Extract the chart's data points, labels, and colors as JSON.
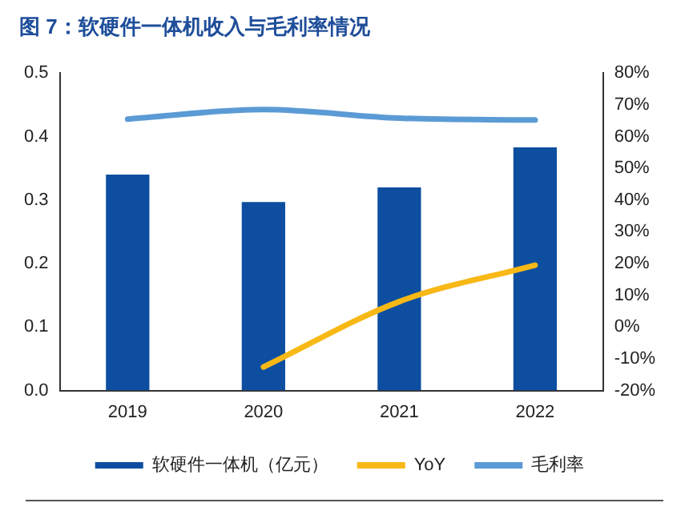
{
  "chart_data": {
    "type": "bar",
    "title": "图 7：软硬件一体机收入与毛利率情况",
    "categories": [
      "2019",
      "2020",
      "2021",
      "2022"
    ],
    "series": [
      {
        "name": "软硬件一体机（亿元）",
        "color": "#0d4ea0",
        "values": [
          0.34,
          0.297,
          0.32,
          0.383
        ]
      },
      {
        "name": "YoY",
        "type": "line",
        "axis": "y2",
        "color": "#f8b815",
        "values": [
          null,
          -12.6,
          8,
          19.5
        ]
      },
      {
        "name": "毛利率",
        "type": "line",
        "axis": "y2",
        "color": "#5b9bd5",
        "values": [
          65.5,
          68.5,
          65.8,
          65.2
        ]
      }
    ],
    "ylim": [
      0,
      0.5
    ],
    "yticks": [
      {
        "value": 0,
        "label": "0.0"
      },
      0.1,
      0.2,
      0.3,
      0.4,
      0.5
    ],
    "y2lim": [
      -20,
      80
    ],
    "y2ticks": [
      {
        "value": -20,
        "label": "-20%"
      },
      {
        "value": -10,
        "label": "-10%"
      },
      {
        "value": 0,
        "label": "0%"
      },
      {
        "value": 10,
        "label": "10%"
      },
      {
        "value": 20,
        "label": "20%"
      },
      {
        "value": 30,
        "label": "30%"
      },
      {
        "value": 40,
        "label": "40%"
      },
      {
        "value": 50,
        "label": "50%"
      },
      {
        "value": 60,
        "label": "60%"
      },
      {
        "value": 70,
        "label": "70%"
      },
      {
        "value": 80,
        "label": "80%"
      }
    ],
    "grid": false,
    "legend": "bottom"
  }
}
